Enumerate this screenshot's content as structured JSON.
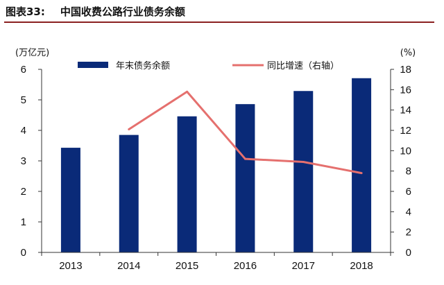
{
  "figure": {
    "number_label": "图表33:",
    "title": "中国收费公路行业债务余额"
  },
  "colors": {
    "bar": "#0a2a78",
    "line": "#e5706e",
    "title_rule": "#8a1f1f"
  },
  "chart_data": {
    "type": "bar",
    "title": "中国收费公路行业债务余额",
    "categories": [
      "2013",
      "2014",
      "2015",
      "2016",
      "2017",
      "2018"
    ],
    "series": [
      {
        "name": "年末债务余额",
        "type": "bar",
        "axis": "left",
        "values": [
          3.43,
          3.85,
          4.46,
          4.86,
          5.29,
          5.71
        ]
      },
      {
        "name": "同比增速（右轴）",
        "type": "line",
        "axis": "right",
        "values": [
          null,
          12.1,
          15.8,
          9.2,
          8.9,
          7.8
        ]
      }
    ],
    "ylabel_left": "(万亿元)",
    "ylabel_right": "(%)",
    "ylim_left": [
      0,
      6
    ],
    "ylim_right": [
      0,
      18
    ],
    "yticks_left": [
      "0",
      "1",
      "2",
      "3",
      "4",
      "5",
      "6"
    ],
    "yticks_right": [
      "0",
      "2",
      "4",
      "6",
      "8",
      "10",
      "12",
      "14",
      "16",
      "18"
    ],
    "grid": false,
    "legend_position": "top"
  }
}
